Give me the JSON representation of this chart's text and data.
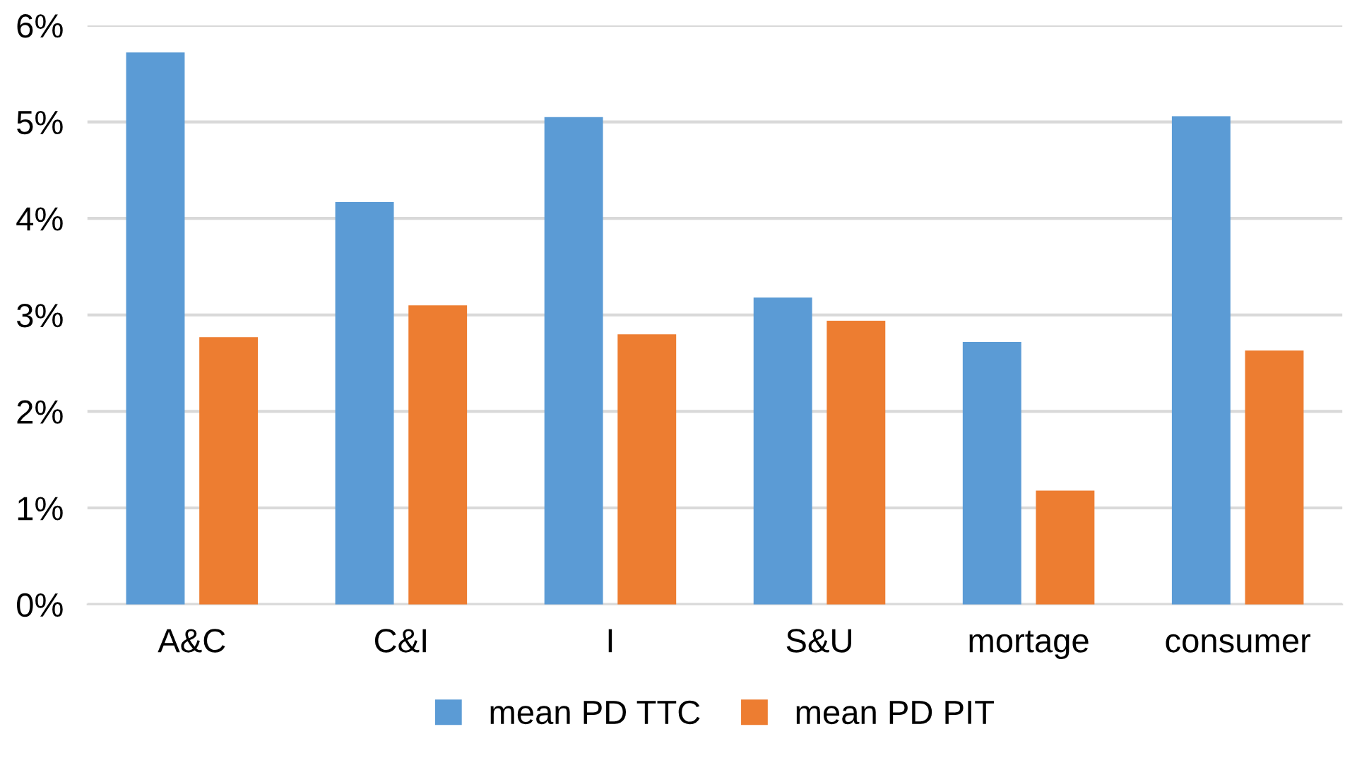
{
  "chart_data": {
    "type": "bar",
    "categories": [
      "A&C",
      "C&I",
      "I",
      "S&U",
      "mortage",
      "consumer"
    ],
    "series": [
      {
        "name": "mean PD TTC",
        "color": "#5b9bd5",
        "values": [
          5.72,
          4.17,
          5.05,
          3.18,
          2.72,
          5.06
        ]
      },
      {
        "name": "mean PD PIT",
        "color": "#ed7d31",
        "values": [
          2.77,
          3.1,
          2.8,
          2.94,
          1.18,
          2.63
        ]
      }
    ],
    "ylim": [
      0,
      6
    ],
    "yticks": [
      {
        "value": 0,
        "label": "0%"
      },
      {
        "value": 1,
        "label": "1%"
      },
      {
        "value": 2,
        "label": "2%"
      },
      {
        "value": 3,
        "label": "3%"
      },
      {
        "value": 4,
        "label": "4%"
      },
      {
        "value": 5,
        "label": "5%"
      },
      {
        "value": 6,
        "label": "6%"
      }
    ],
    "grid": "y",
    "legend": "bottom"
  }
}
